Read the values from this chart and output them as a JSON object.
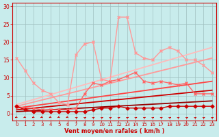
{
  "xlabel": "Vent moyen/en rafales ( km/h )",
  "xlim": [
    -0.5,
    23.5
  ],
  "ylim": [
    -2,
    31
  ],
  "yticks": [
    0,
    5,
    10,
    15,
    20,
    25,
    30
  ],
  "xticks": [
    0,
    1,
    2,
    3,
    4,
    5,
    6,
    7,
    8,
    9,
    10,
    11,
    12,
    13,
    14,
    15,
    16,
    17,
    18,
    19,
    20,
    21,
    22,
    23
  ],
  "bg_color": "#c8ecec",
  "grid_color": "#a0c0c0",
  "series": [
    {
      "x": [
        0,
        1,
        2,
        3,
        4,
        5,
        6,
        7,
        8,
        9,
        10,
        11,
        12,
        13,
        14,
        15,
        16,
        17,
        18,
        19,
        20,
        21,
        22,
        23
      ],
      "y": [
        15.5,
        12.0,
        8.5,
        6.5,
        5.5,
        3.0,
        2.5,
        16.5,
        19.5,
        20.0,
        9.5,
        9.0,
        27.0,
        27.0,
        17.0,
        15.5,
        15.0,
        17.5,
        18.5,
        17.5,
        15.0,
        15.0,
        13.5,
        11.5
      ],
      "color": "#ff9999",
      "lw": 1.0,
      "marker": "x",
      "ms": 3.5,
      "zorder": 3
    },
    {
      "x": [
        0,
        1,
        2,
        3,
        4,
        5,
        6,
        7,
        8,
        9,
        10,
        11,
        12,
        13,
        14,
        15,
        16,
        17,
        18,
        19,
        20,
        21,
        22,
        23
      ],
      "y": [
        2.0,
        1.5,
        1.5,
        1.0,
        1.0,
        1.0,
        1.0,
        1.5,
        5.5,
        8.5,
        8.0,
        9.0,
        9.5,
        10.5,
        11.5,
        9.0,
        8.5,
        9.0,
        8.5,
        8.0,
        8.5,
        5.5,
        5.5,
        5.5
      ],
      "color": "#ff6666",
      "lw": 1.0,
      "marker": "x",
      "ms": 3.5,
      "zorder": 4
    },
    {
      "x": [
        0,
        1,
        2,
        3,
        4,
        5,
        6,
        7,
        8,
        9,
        10,
        11,
        12,
        13,
        14,
        15,
        16,
        17,
        18,
        19,
        20,
        21,
        22,
        23
      ],
      "y": [
        2.0,
        1.0,
        0.5,
        0.5,
        0.5,
        0.5,
        0.5,
        0.5,
        0.5,
        1.0,
        1.5,
        1.5,
        2.0,
        1.5,
        1.5,
        1.5,
        1.5,
        1.5,
        2.0,
        2.0,
        2.0,
        2.0,
        2.0,
        2.0
      ],
      "color": "#cc0000",
      "lw": 1.0,
      "marker": "D",
      "ms": 2.5,
      "zorder": 5
    },
    {
      "x": [
        0,
        23
      ],
      "y": [
        2.5,
        18.5
      ],
      "color": "#ffbbbb",
      "lw": 1.3,
      "marker": null,
      "ms": 0,
      "zorder": 2
    },
    {
      "x": [
        0,
        23
      ],
      "y": [
        2.0,
        15.5
      ],
      "color": "#ff9999",
      "lw": 1.3,
      "marker": null,
      "ms": 0,
      "zorder": 2
    },
    {
      "x": [
        0,
        23
      ],
      "y": [
        1.5,
        9.0
      ],
      "color": "#ff4444",
      "lw": 1.3,
      "marker": null,
      "ms": 0,
      "zorder": 2
    },
    {
      "x": [
        0,
        23
      ],
      "y": [
        1.0,
        6.5
      ],
      "color": "#cc0000",
      "lw": 1.3,
      "marker": null,
      "ms": 0,
      "zorder": 2
    },
    {
      "x": [
        0,
        23
      ],
      "y": [
        0.5,
        3.5
      ],
      "color": "#990000",
      "lw": 1.3,
      "marker": null,
      "ms": 0,
      "zorder": 2
    }
  ],
  "arrows_down": [
    0,
    1,
    2,
    3,
    4,
    5,
    6
  ],
  "arrows_up": [
    7,
    8,
    9,
    10,
    11,
    12,
    13,
    14,
    15,
    16,
    17,
    18,
    19,
    20,
    21,
    22,
    23
  ]
}
